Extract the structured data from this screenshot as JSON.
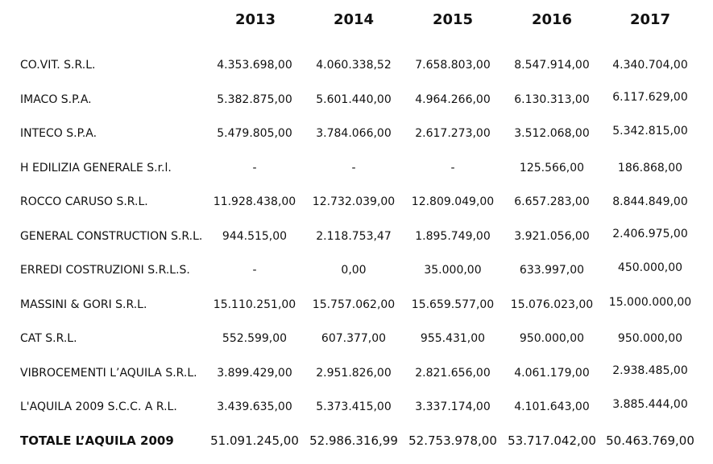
{
  "years": [
    "2013",
    "2014",
    "2015",
    "2016",
    "2017"
  ],
  "rows": [
    {
      "name": "CO.VIT. S.R.L.",
      "values": [
        "4.353.698,00",
        "4.060.338,52",
        "7.658.803,00",
        "8.547.914,00",
        "4.340.704,00"
      ]
    },
    {
      "name": "IMACO S.P.A.",
      "values": [
        "5.382.875,00",
        "5.601.440,00",
        "4.964.266,00",
        "6.130.313,00",
        "6.117.629,00"
      ]
    },
    {
      "name": "INTECO S.P.A.",
      "values": [
        "5.479.805,00",
        "3.784.066,00",
        "2.617.273,00",
        "3.512.068,00",
        "5.342.815,00"
      ]
    },
    {
      "name": "H EDILIZIA GENERALE S.r.l.",
      "values": [
        "-",
        "-",
        "-",
        "125.566,00",
        "186.868,00"
      ]
    },
    {
      "name": "ROCCO CARUSO S.R.L.",
      "values": [
        "11.928.438,00",
        "12.732.039,00",
        "12.809.049,00",
        "6.657.283,00",
        "8.844.849,00"
      ]
    },
    {
      "name": "GENERAL CONSTRUCTION S.R.L.",
      "values": [
        "944.515,00",
        "2.118.753,47",
        "1.895.749,00",
        "3.921.056,00",
        "2.406.975,00"
      ]
    },
    {
      "name": "ERREDI COSTRUZIONI S.R.L.S.",
      "values": [
        "-",
        "0,00",
        "35.000,00",
        "633.997,00",
        "450.000,00"
      ]
    },
    {
      "name": "MASSINI & GORI S.R.L.",
      "values": [
        "15.110.251,00",
        "15.757.062,00",
        "15.659.577,00",
        "15.076.023,00",
        "15.000.000,00"
      ]
    },
    {
      "name": "CAT S.R.L.",
      "values": [
        "552.599,00",
        "607.377,00",
        "955.431,00",
        "950.000,00",
        "950.000,00"
      ]
    },
    {
      "name": "VIBROCEMENTI L’AQUILA S.R.L.",
      "values": [
        "3.899.429,00",
        "2.951.826,00",
        "2.821.656,00",
        "4.061.179,00",
        "2.938.485,00"
      ]
    },
    {
      "name": "L'AQUILA 2009 S.C.C. A R.L.",
      "values": [
        "3.439.635,00",
        "5.373.415,00",
        "3.337.174,00",
        "4.101.643,00",
        "3.885.444,00"
      ]
    }
  ],
  "total": {
    "name": "TOTALE L’AQUILA 2009",
    "values": [
      "51.091.245,00",
      "52.986.316,99",
      "52.753.978,00",
      "53.717.042,00",
      "50.463.769,00"
    ]
  }
}
